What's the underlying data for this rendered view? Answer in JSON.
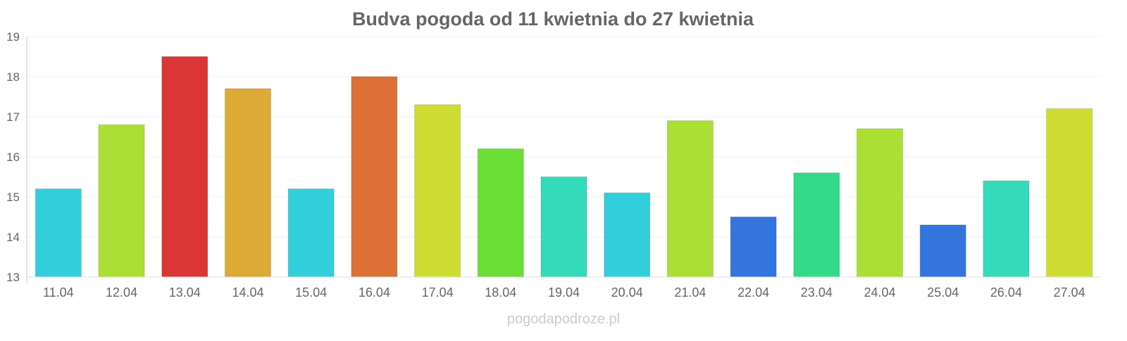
{
  "chart_data": {
    "type": "bar",
    "title": "Budva pogoda od 11 kwietnia do 27 kwietnia",
    "xlabel": "",
    "ylabel": "",
    "ylim": [
      13,
      19
    ],
    "yticks": [
      "13",
      "14",
      "15",
      "16",
      "17",
      "18",
      "19"
    ],
    "grid": true,
    "categories": [
      "11.04",
      "12.04",
      "13.04",
      "14.04",
      "15.04",
      "16.04",
      "17.04",
      "18.04",
      "19.04",
      "20.04",
      "21.04",
      "22.04",
      "23.04",
      "24.04",
      "25.04",
      "26.04",
      "27.04"
    ],
    "values": [
      15.2,
      16.8,
      18.5,
      17.7,
      15.2,
      18.0,
      17.3,
      16.2,
      15.5,
      15.1,
      16.9,
      14.5,
      15.6,
      16.7,
      14.3,
      15.4,
      17.2
    ],
    "colors": [
      "#33cedb",
      "#acdf33",
      "#dc3535",
      "#dcaa35",
      "#33cedb",
      "#dd7035",
      "#cfdd33",
      "#6bdf35",
      "#33dbbb",
      "#33cedb",
      "#acdf33",
      "#3475dd",
      "#33db88",
      "#acdf33",
      "#3475dd",
      "#33dbbb",
      "#cfdd33"
    ]
  },
  "footer": {
    "watermark": "pogodapodroze.pl"
  }
}
